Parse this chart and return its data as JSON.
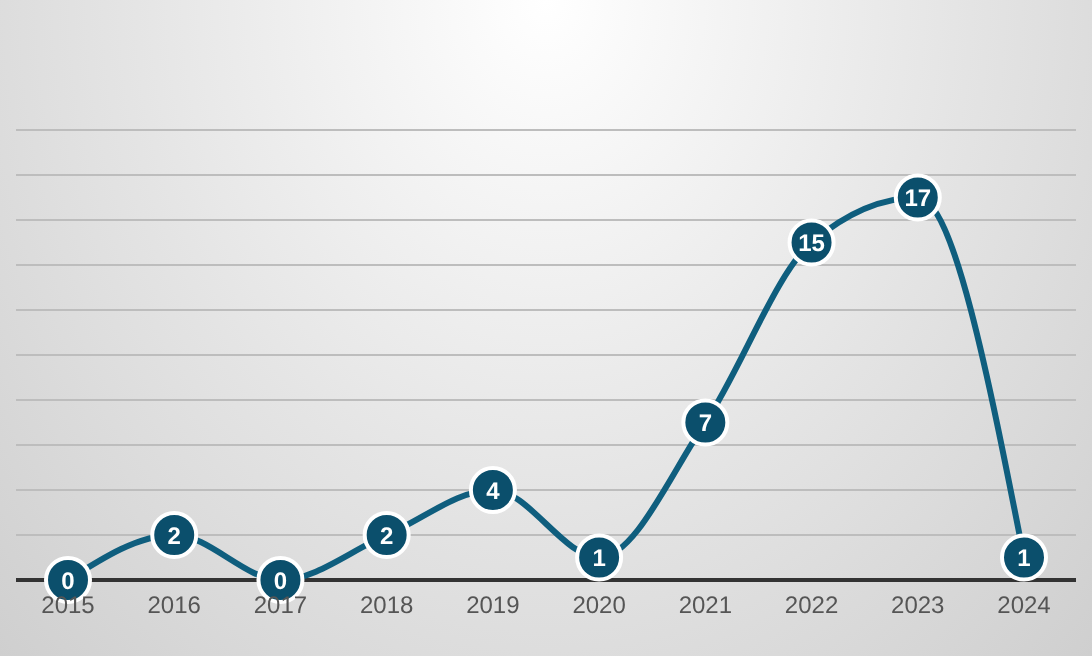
{
  "chart_data": {
    "type": "line",
    "categories": [
      "2015",
      "2016",
      "2017",
      "2018",
      "2019",
      "2020",
      "2021",
      "2022",
      "2023",
      "2024"
    ],
    "series": [
      {
        "color": "#0f5e7e",
        "values": [
          0,
          2,
          0,
          2,
          4,
          1,
          7,
          15,
          17,
          1
        ]
      }
    ],
    "ylim": [
      0,
      20
    ],
    "yticks": [
      {
        "value": 0,
        "label": null
      },
      {
        "value": 2,
        "label": null
      },
      {
        "value": 4,
        "label": null
      },
      {
        "value": 6,
        "label": null
      },
      {
        "value": 8,
        "label": null
      },
      {
        "value": 10,
        "label": null
      },
      {
        "value": 12,
        "label": null
      },
      {
        "value": 14,
        "label": null
      },
      {
        "value": 16,
        "label": null
      },
      {
        "value": 18,
        "label": null
      },
      {
        "value": 20,
        "label": null
      }
    ],
    "tick_labels": "x",
    "grid": "y",
    "data_labels": true,
    "marker": "circle",
    "legend": false
  }
}
